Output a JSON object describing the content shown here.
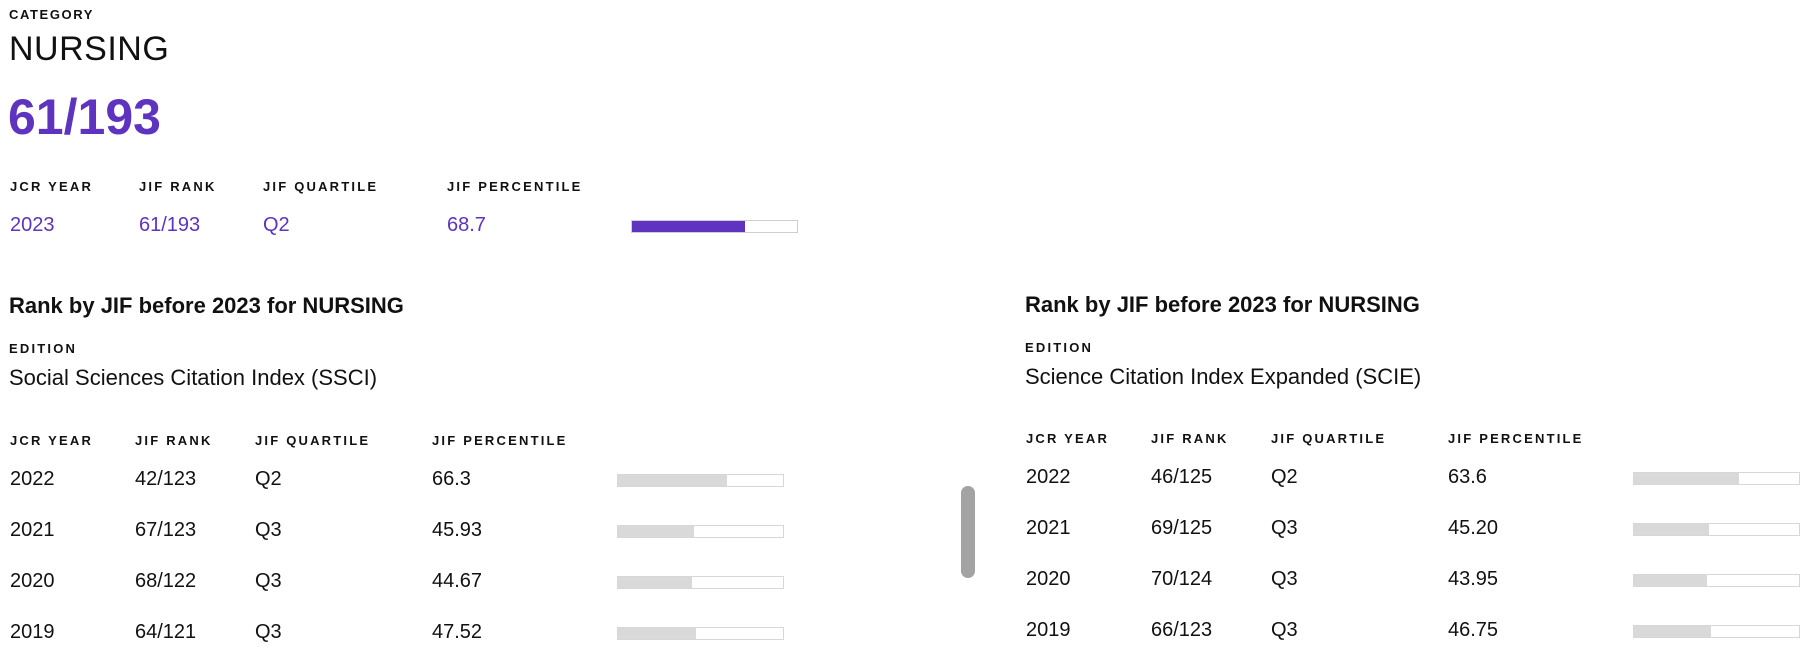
{
  "category": {
    "label": "CATEGORY",
    "name": "NURSING",
    "rank": "61/193"
  },
  "current": {
    "headers": {
      "year": "JCR YEAR",
      "rank": "JIF RANK",
      "quartile": "JIF QUARTILE",
      "percentile": "JIF PERCENTILE"
    },
    "row": {
      "year": "2023",
      "rank": "61/193",
      "quartile": "Q2",
      "percentile": "68.7",
      "percentile_value": 68.7
    },
    "accent_color": "#5e33bf"
  },
  "ssci": {
    "title": "Rank by JIF before 2023 for NURSING",
    "edition_label": "EDITION",
    "edition": "Social Sciences Citation Index (SSCI)",
    "headers": {
      "year": "JCR YEAR",
      "rank": "JIF RANK",
      "quartile": "JIF QUARTILE",
      "percentile": "JIF PERCENTILE"
    },
    "rows": [
      {
        "year": "2022",
        "rank": "42/123",
        "quartile": "Q2",
        "percentile": "66.3",
        "percentile_value": 66.3
      },
      {
        "year": "2021",
        "rank": "67/123",
        "quartile": "Q3",
        "percentile": "45.93",
        "percentile_value": 45.93
      },
      {
        "year": "2020",
        "rank": "68/122",
        "quartile": "Q3",
        "percentile": "44.67",
        "percentile_value": 44.67
      },
      {
        "year": "2019",
        "rank": "64/121",
        "quartile": "Q3",
        "percentile": "47.52",
        "percentile_value": 47.52
      }
    ]
  },
  "scie": {
    "title": "Rank by JIF before 2023 for NURSING",
    "edition_label": "EDITION",
    "edition": "Science Citation Index Expanded (SCIE)",
    "headers": {
      "year": "JCR YEAR",
      "rank": "JIF RANK",
      "quartile": "JIF QUARTILE",
      "percentile": "JIF PERCENTILE"
    },
    "rows": [
      {
        "year": "2022",
        "rank": "46/125",
        "quartile": "Q2",
        "percentile": "63.6",
        "percentile_value": 63.6
      },
      {
        "year": "2021",
        "rank": "69/125",
        "quartile": "Q3",
        "percentile": "45.20",
        "percentile_value": 45.2
      },
      {
        "year": "2020",
        "rank": "70/124",
        "quartile": "Q3",
        "percentile": "43.95",
        "percentile_value": 43.95
      },
      {
        "year": "2019",
        "rank": "66/123",
        "quartile": "Q3",
        "percentile": "46.75",
        "percentile_value": 46.75
      }
    ]
  }
}
